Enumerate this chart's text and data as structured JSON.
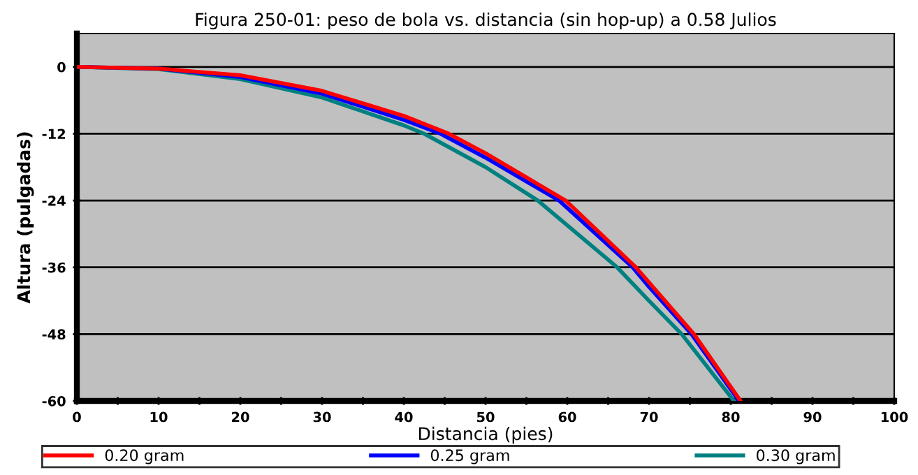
{
  "chart_data": {
    "type": "line",
    "title": "Figura 250-01: peso de bola vs. distancia (sin hop-up) a 0.58 Julios",
    "xlabel": "Distancia (pies)",
    "ylabel": "Altura (pulgadas)",
    "series": [
      {
        "name": "0.20 gram",
        "color": "#ff0000",
        "x": [
          0,
          10,
          20,
          30,
          40,
          45.5,
          50,
          59.8,
          68.4,
          70,
          75.5,
          81.2
        ],
        "values": [
          0,
          -0.3,
          -1.5,
          -4.3,
          -8.8,
          -12,
          -15.5,
          -24,
          -36,
          -38.7,
          -48,
          -60
        ]
      },
      {
        "name": "0.25 gram",
        "color": "#0000ff",
        "x": [
          0,
          10,
          20,
          30,
          40,
          44.5,
          50,
          59,
          68,
          70,
          75.2,
          81
        ],
        "values": [
          0,
          -0.3,
          -1.8,
          -4.8,
          -9.5,
          -12,
          -16.3,
          -24,
          -36,
          -39.5,
          -48,
          -60
        ]
      },
      {
        "name": "0.30 gram",
        "color": "#008080",
        "x": [
          0,
          10,
          20,
          30,
          40,
          42.5,
          50,
          56.4,
          66.1,
          70,
          74,
          80.4
        ],
        "values": [
          0,
          -0.4,
          -2.2,
          -5.5,
          -10.5,
          -12,
          -18,
          -24,
          -36,
          -42,
          -48,
          -60
        ]
      }
    ],
    "xlim": [
      0,
      100
    ],
    "ylim": [
      -60,
      6
    ],
    "xticks": [
      0,
      {
        "value": 5,
        "label": null
      },
      10,
      {
        "value": 15,
        "label": null
      },
      20,
      {
        "value": 25,
        "label": null
      },
      30,
      {
        "value": 35,
        "label": null
      },
      40,
      {
        "value": 45,
        "label": null
      },
      50,
      {
        "value": 55,
        "label": null
      },
      60,
      {
        "value": 65,
        "label": null
      },
      70,
      {
        "value": 75,
        "label": null
      },
      80,
      {
        "value": 85,
        "label": null
      },
      90,
      {
        "value": 95,
        "label": null
      },
      100
    ],
    "yticks": [
      0,
      -12,
      -24,
      -36,
      -48,
      -60
    ],
    "grid": "y",
    "legend": "bottom",
    "marker": "none",
    "line_style": "solid"
  }
}
